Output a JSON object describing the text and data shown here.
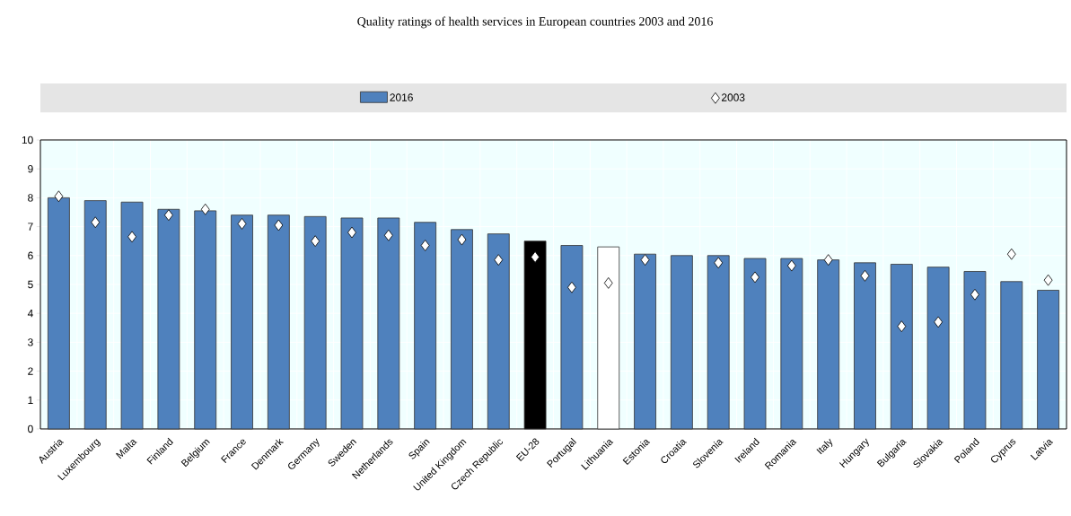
{
  "chart_data": {
    "type": "bar",
    "title": "Quality ratings of health services in European countries 2003 and 2016",
    "categories": [
      "Austria",
      "Luxembourg",
      "Malta",
      "Finland",
      "Belgium",
      "France",
      "Denmark",
      "Germany",
      "Sweden",
      "Netherlands",
      "Spain",
      "United Kingdom",
      "Czech Republic",
      "EU-28",
      "Portugal",
      "Lithuania",
      "Estonia",
      "Croatia",
      "Slovenia",
      "Ireland",
      "Romania",
      "Italy",
      "Hungary",
      "Bulgaria",
      "Slovakia",
      "Poland",
      "Cyprus",
      "Latvia"
    ],
    "series": [
      {
        "name": "2016",
        "color": "#4f81bd",
        "colors": [
          "#4f81bd",
          "#4f81bd",
          "#4f81bd",
          "#4f81bd",
          "#4f81bd",
          "#4f81bd",
          "#4f81bd",
          "#4f81bd",
          "#4f81bd",
          "#4f81bd",
          "#4f81bd",
          "#4f81bd",
          "#4f81bd",
          "#000000",
          "#4f81bd",
          "#ffffff",
          "#4f81bd",
          "#4f81bd",
          "#4f81bd",
          "#4f81bd",
          "#4f81bd",
          "#4f81bd",
          "#4f81bd",
          "#4f81bd",
          "#4f81bd",
          "#4f81bd",
          "#4f81bd",
          "#4f81bd"
        ],
        "values": [
          8.0,
          7.9,
          7.85,
          7.6,
          7.55,
          7.4,
          7.4,
          7.35,
          7.3,
          7.3,
          7.15,
          6.9,
          6.75,
          6.5,
          6.35,
          6.3,
          6.05,
          6.0,
          6.0,
          5.9,
          5.9,
          5.85,
          5.75,
          5.7,
          5.6,
          5.45,
          5.1,
          4.8
        ]
      },
      {
        "name": "2003",
        "type": "scatter",
        "color": "#ffffff",
        "marker": "diamond",
        "x": [
          "Austria",
          "Luxembourg",
          "Malta",
          "Finland",
          "Belgium",
          "France",
          "Denmark",
          "Germany",
          "Sweden",
          "Netherlands",
          "Spain",
          "United Kingdom",
          "Czech Republic",
          "EU-28",
          "Portugal",
          "Lithuania",
          "Estonia",
          "Croatia",
          "Slovenia",
          "Ireland",
          "Romania",
          "Italy",
          "Hungary",
          "Bulgaria",
          "Slovakia",
          "Poland",
          "Cyprus",
          "Latvia"
        ],
        "values": [
          8.05,
          7.15,
          6.65,
          7.4,
          7.6,
          7.1,
          7.05,
          6.5,
          6.8,
          6.7,
          6.35,
          6.55,
          5.85,
          5.95,
          4.9,
          5.05,
          5.85,
          null,
          5.75,
          5.25,
          5.65,
          5.85,
          5.3,
          3.55,
          3.7,
          4.65,
          6.05,
          5.15
        ]
      }
    ],
    "ylim": [
      0,
      10
    ],
    "yticks": [
      0,
      1,
      2,
      3,
      4,
      5,
      6,
      7,
      8,
      9,
      10
    ],
    "grid": true,
    "legend": "top"
  }
}
